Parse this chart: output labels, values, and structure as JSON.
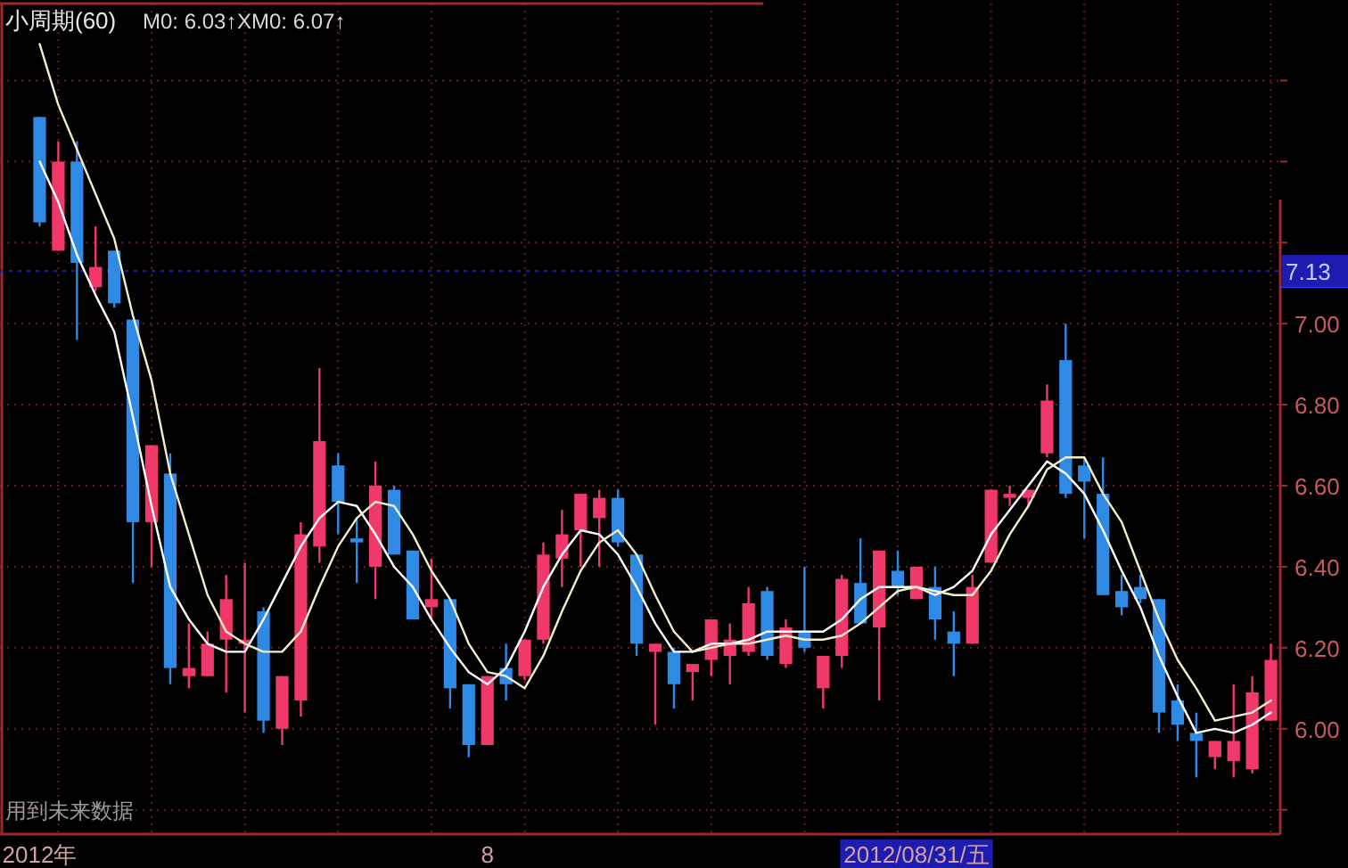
{
  "chart_data": {
    "type": "candlestick",
    "title": "小周期(60)",
    "annotations": [
      "M0: 6.03↑",
      "XM0: 6.07↑",
      "用到未来数据"
    ],
    "categories": [
      "2012年",
      null,
      null,
      null,
      null,
      null,
      null,
      null,
      null,
      null,
      null,
      null,
      null,
      null,
      null,
      null,
      null,
      null,
      null,
      null,
      null,
      null,
      null,
      null,
      "8",
      null,
      null,
      null,
      null,
      null,
      null,
      null,
      null,
      null,
      null,
      null,
      null,
      null,
      null,
      null,
      null,
      null,
      null,
      null,
      null,
      null,
      null,
      "2012/08/31/五",
      null,
      null,
      null,
      null,
      null,
      null,
      null,
      null,
      null,
      null,
      null,
      null,
      null,
      null,
      null,
      null,
      null,
      null,
      null
    ],
    "ohlc": [
      [
        7.51,
        7.51,
        7.24,
        7.25
      ],
      [
        7.18,
        7.45,
        7.18,
        7.4
      ],
      [
        7.4,
        7.45,
        6.96,
        7.15
      ],
      [
        7.09,
        7.24,
        7.08,
        7.14
      ],
      [
        7.18,
        7.18,
        7.04,
        7.05
      ],
      [
        7.01,
        7.01,
        6.36,
        6.51
      ],
      [
        6.51,
        6.7,
        6.4,
        6.7
      ],
      [
        6.63,
        6.68,
        6.11,
        6.15
      ],
      [
        6.13,
        6.26,
        6.1,
        6.15
      ],
      [
        6.13,
        6.24,
        6.13,
        6.21
      ],
      [
        6.22,
        6.38,
        6.09,
        6.32
      ],
      [
        6.21,
        6.41,
        6.04,
        6.22
      ],
      [
        6.29,
        6.3,
        5.99,
        6.02
      ],
      [
        6.0,
        6.13,
        5.96,
        6.13
      ],
      [
        6.07,
        6.51,
        6.03,
        6.48
      ],
      [
        6.45,
        6.89,
        6.41,
        6.71
      ],
      [
        6.65,
        6.68,
        6.48,
        6.56
      ],
      [
        6.47,
        6.52,
        6.36,
        6.46
      ],
      [
        6.4,
        6.66,
        6.32,
        6.6
      ],
      [
        6.59,
        6.6,
        6.43,
        6.43
      ],
      [
        6.44,
        6.44,
        6.27,
        6.27
      ],
      [
        6.3,
        6.42,
        6.27,
        6.32
      ],
      [
        6.32,
        6.32,
        6.05,
        6.1
      ],
      [
        6.11,
        6.11,
        5.93,
        5.96
      ],
      [
        5.96,
        6.13,
        5.96,
        6.13
      ],
      [
        6.15,
        6.21,
        6.07,
        6.11
      ],
      [
        6.13,
        6.22,
        6.12,
        6.22
      ],
      [
        6.22,
        6.46,
        6.21,
        6.43
      ],
      [
        6.42,
        6.54,
        6.35,
        6.48
      ],
      [
        6.49,
        6.58,
        6.4,
        6.58
      ],
      [
        6.52,
        6.59,
        6.4,
        6.57
      ],
      [
        6.57,
        6.59,
        6.45,
        6.46
      ],
      [
        6.43,
        6.43,
        6.18,
        6.21
      ],
      [
        6.19,
        6.21,
        6.01,
        6.21
      ],
      [
        6.19,
        6.2,
        6.05,
        6.11
      ],
      [
        6.14,
        6.16,
        6.07,
        6.16
      ],
      [
        6.17,
        6.27,
        6.13,
        6.27
      ],
      [
        6.18,
        6.26,
        6.11,
        6.22
      ],
      [
        6.19,
        6.35,
        6.18,
        6.31
      ],
      [
        6.34,
        6.35,
        6.17,
        6.18
      ],
      [
        6.16,
        6.27,
        6.15,
        6.25
      ],
      [
        6.24,
        6.4,
        6.19,
        6.2
      ],
      [
        6.1,
        6.18,
        6.05,
        6.18
      ],
      [
        6.18,
        6.38,
        6.15,
        6.37
      ],
      [
        6.36,
        6.47,
        6.26,
        6.26
      ],
      [
        6.25,
        6.44,
        6.07,
        6.44
      ],
      [
        6.39,
        6.44,
        6.33,
        6.35
      ],
      [
        6.32,
        6.4,
        6.32,
        6.4
      ],
      [
        6.35,
        6.4,
        6.22,
        6.27
      ],
      [
        6.24,
        6.29,
        6.13,
        6.21
      ],
      [
        6.21,
        6.38,
        6.21,
        6.35
      ],
      [
        6.41,
        6.59,
        6.41,
        6.59
      ],
      [
        6.57,
        6.6,
        6.55,
        6.58
      ],
      [
        6.57,
        6.59,
        6.55,
        6.59
      ],
      [
        6.68,
        6.85,
        6.67,
        6.81
      ],
      [
        6.91,
        7.0,
        6.57,
        6.58
      ],
      [
        6.65,
        6.67,
        6.47,
        6.61
      ],
      [
        6.58,
        6.67,
        6.33,
        6.33
      ],
      [
        6.34,
        6.38,
        6.28,
        6.3
      ],
      [
        6.35,
        6.38,
        6.31,
        6.32
      ],
      [
        6.32,
        6.32,
        5.99,
        6.04
      ],
      [
        6.07,
        6.11,
        5.97,
        6.01
      ],
      [
        5.99,
        6.04,
        5.88,
        5.97
      ],
      [
        5.93,
        5.97,
        5.9,
        5.97
      ],
      [
        5.92,
        6.11,
        5.88,
        5.97
      ],
      [
        5.9,
        6.13,
        5.89,
        6.09
      ],
      [
        6.02,
        6.21,
        6.02,
        6.17
      ]
    ],
    "colors": [
      "#2f8ae6",
      "#f0386a",
      "#2f8ae6",
      "#f0386a",
      "#2f8ae6",
      "#2f8ae6",
      "#f0386a",
      "#2f8ae6",
      "#f0386a",
      "#f0386a",
      "#f0386a",
      "#f0386a",
      "#2f8ae6",
      "#f0386a",
      "#f0386a",
      "#f0386a",
      "#2f8ae6",
      "#2f8ae6",
      "#f0386a",
      "#2f8ae6",
      "#2f8ae6",
      "#f0386a",
      "#2f8ae6",
      "#2f8ae6",
      "#f0386a",
      "#2f8ae6",
      "#f0386a",
      "#f0386a",
      "#f0386a",
      "#f0386a",
      "#f0386a",
      "#2f8ae6",
      "#2f8ae6",
      "#f0386a",
      "#2f8ae6",
      "#f0386a",
      "#f0386a",
      "#f0386a",
      "#f0386a",
      "#2f8ae6",
      "#f0386a",
      "#2f8ae6",
      "#f0386a",
      "#f0386a",
      "#2f8ae6",
      "#f0386a",
      "#2f8ae6",
      "#f0386a",
      "#2f8ae6",
      "#2f8ae6",
      "#f0386a",
      "#f0386a",
      "#f0386a",
      "#f0386a",
      "#f0386a",
      "#2f8ae6",
      "#2f8ae6",
      "#2f8ae6",
      "#2f8ae6",
      "#2f8ae6",
      "#2f8ae6",
      "#2f8ae6",
      "#2f8ae6",
      "#f0386a",
      "#f0386a",
      "#f0386a",
      "#f0386a"
    ],
    "series": [
      {
        "type": "line",
        "color": "#ffffff",
        "values": [
          7.4,
          7.3,
          7.17,
          7.07,
          6.98,
          6.77,
          6.55,
          6.35,
          6.27,
          6.21,
          6.19,
          6.19,
          6.27,
          6.36,
          6.45,
          6.52,
          6.56,
          6.55,
          6.48,
          6.4,
          6.35,
          6.27,
          6.2,
          6.14,
          6.11,
          6.15,
          6.24,
          6.35,
          6.43,
          6.49,
          6.48,
          6.43,
          6.35,
          6.26,
          6.19,
          6.19,
          6.21,
          6.21,
          6.22,
          6.24,
          6.24,
          6.24,
          6.24,
          6.27,
          6.32,
          6.35,
          6.35,
          6.35,
          6.33,
          6.35,
          6.39,
          6.48,
          6.54,
          6.6,
          6.66,
          6.63,
          6.58,
          6.49,
          6.39,
          6.3,
          6.18,
          6.08,
          5.99,
          6.0,
          5.99,
          6.01,
          6.04
        ]
      },
      {
        "type": "line",
        "color": "#f3eec8",
        "values": [
          7.69,
          7.54,
          7.43,
          7.32,
          7.21,
          7.02,
          6.86,
          6.63,
          6.48,
          6.33,
          6.24,
          6.21,
          6.19,
          6.19,
          6.24,
          6.35,
          6.45,
          6.52,
          6.56,
          6.55,
          6.48,
          6.39,
          6.32,
          6.21,
          6.14,
          6.13,
          6.1,
          6.18,
          6.29,
          6.39,
          6.46,
          6.49,
          6.43,
          6.33,
          6.24,
          6.19,
          6.2,
          6.21,
          6.21,
          6.22,
          6.23,
          6.22,
          6.22,
          6.23,
          6.26,
          6.3,
          6.34,
          6.35,
          6.34,
          6.33,
          6.33,
          6.39,
          6.48,
          6.55,
          6.64,
          6.67,
          6.67,
          6.58,
          6.51,
          6.39,
          6.27,
          6.17,
          6.1,
          6.02,
          6.03,
          6.04,
          6.07
        ]
      }
    ],
    "ylim": [
      5.74,
      7.79
    ],
    "yticks": [
      {
        "value": 5.8,
        "label": null
      },
      {
        "value": 6,
        "label": "6.00"
      },
      {
        "value": 6.2,
        "label": "6.20"
      },
      {
        "value": 6.4,
        "label": "6.40"
      },
      {
        "value": 6.6,
        "label": "6.60"
      },
      {
        "value": 6.8,
        "label": "6.80"
      },
      {
        "value": 7,
        "label": "7.00"
      },
      {
        "value": 7.2,
        "label": null
      },
      {
        "value": 7.4,
        "label": null
      },
      {
        "value": 7.6,
        "label": null
      }
    ],
    "ref_lines": [
      {
        "axis": "y",
        "value": 7.13,
        "label": "7.13",
        "color": "#1c1cb0"
      }
    ],
    "grid": true
  }
}
